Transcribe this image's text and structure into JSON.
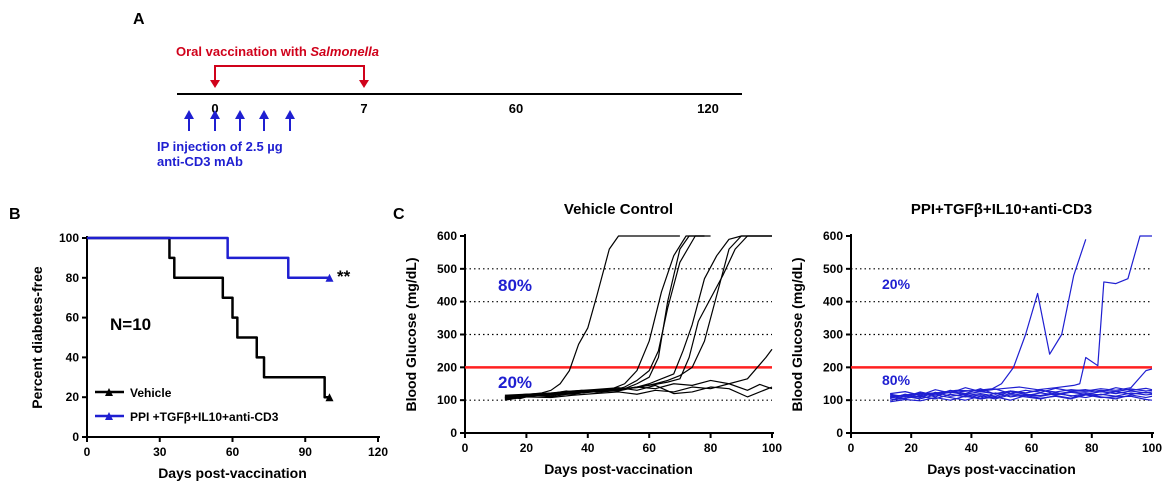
{
  "panel_a": {
    "letter": "A",
    "vaccination_text": "Oral vaccination with ",
    "vaccination_italic": "Salmonella",
    "timeline_ticks": [
      "0",
      "7",
      "60",
      "120"
    ],
    "injection_line1": "IP injection of 2.5 µg",
    "injection_line2": "anti-CD3 mAb",
    "injection_arrow_count": 5,
    "colors": {
      "vaccination": "#d0021b",
      "injection": "#1f1fd1"
    }
  },
  "panel_b": {
    "letter": "B",
    "annotation": "N=10",
    "significance": "**"
  },
  "panel_c": {
    "letter": "C",
    "threshold_color": "#ff2020"
  },
  "chart_data": [
    {
      "id": "survival",
      "type": "line",
      "step": true,
      "title": "",
      "xlabel": "Days post-vaccination",
      "ylabel": "Percent diabetes-free",
      "xlim": [
        0,
        120
      ],
      "ylim": [
        0,
        100
      ],
      "xticks": [
        "0",
        "30",
        "60",
        "90",
        "120"
      ],
      "yticks": [
        "0",
        "20",
        "40",
        "60",
        "80",
        "100"
      ],
      "legend_position": "bottom-left",
      "series": [
        {
          "name": "Vehicle",
          "color": "#000000",
          "x": [
            0,
            34,
            36,
            56,
            60,
            62,
            65,
            70,
            73,
            76,
            98,
            100
          ],
          "y": [
            100,
            90,
            80,
            70,
            60,
            50,
            50,
            40,
            30,
            30,
            20,
            20
          ]
        },
        {
          "name": "PPI +TGFβ+IL10+anti-CD3",
          "color": "#1f1fd1",
          "x": [
            0,
            58,
            83,
            100
          ],
          "y": [
            100,
            90,
            80,
            80
          ]
        }
      ]
    },
    {
      "id": "vehicle_glucose",
      "type": "line",
      "title": "Vehicle Control",
      "xlabel": "Days post-vaccination",
      "ylabel": "Blood Glucose (mg/dL)",
      "xlim": [
        0,
        100
      ],
      "ylim": [
        0,
        600
      ],
      "xticks": [
        "0",
        "20",
        "40",
        "60",
        "80",
        "100"
      ],
      "yticks": [
        "0",
        "100",
        "200",
        "300",
        "400",
        "500",
        "600"
      ],
      "dotted_gridlines": [
        100,
        300,
        400,
        500
      ],
      "threshold": 200,
      "annotations": [
        "80%",
        "20%"
      ],
      "series_color": "#000000",
      "series": [
        {
          "x": [
            13,
            17,
            21,
            25,
            28,
            31,
            34,
            37,
            40,
            43,
            47,
            50,
            60,
            70
          ],
          "y": [
            108,
            112,
            118,
            122,
            130,
            150,
            190,
            270,
            320,
            420,
            560,
            600,
            600,
            600
          ]
        },
        {
          "x": [
            13,
            18,
            23,
            28,
            33,
            38,
            43,
            48,
            52,
            56,
            60,
            64,
            68,
            72,
            78
          ],
          "y": [
            105,
            110,
            115,
            120,
            128,
            122,
            130,
            135,
            150,
            190,
            280,
            430,
            540,
            600,
            600
          ]
        },
        {
          "x": [
            13,
            18,
            23,
            28,
            33,
            38,
            43,
            48,
            52,
            56,
            60,
            63,
            66,
            70,
            73,
            78
          ],
          "y": [
            110,
            105,
            118,
            112,
            125,
            130,
            124,
            128,
            135,
            150,
            170,
            230,
            400,
            560,
            600,
            600
          ]
        },
        {
          "x": [
            13,
            18,
            23,
            28,
            33,
            38,
            43,
            48,
            52,
            56,
            60,
            63,
            66,
            70,
            75,
            80
          ],
          "y": [
            100,
            108,
            115,
            110,
            118,
            122,
            128,
            130,
            140,
            160,
            190,
            250,
            380,
            520,
            600,
            600
          ]
        },
        {
          "x": [
            13,
            20,
            28,
            35,
            42,
            50,
            56,
            60,
            64,
            68,
            71,
            74,
            78,
            82,
            86,
            90,
            100
          ],
          "y": [
            112,
            118,
            120,
            125,
            130,
            128,
            140,
            150,
            165,
            180,
            250,
            330,
            470,
            540,
            590,
            600,
            600
          ]
        },
        {
          "x": [
            13,
            20,
            28,
            35,
            42,
            50,
            56,
            62,
            66,
            70,
            74,
            78,
            82,
            86,
            90,
            100
          ],
          "y": [
            105,
            112,
            118,
            122,
            130,
            135,
            138,
            150,
            160,
            175,
            200,
            280,
            420,
            560,
            600,
            600
          ]
        },
        {
          "x": [
            13,
            20,
            28,
            35,
            42,
            50,
            56,
            62,
            66,
            70,
            73,
            76,
            80,
            84,
            88,
            92,
            100
          ],
          "y": [
            110,
            115,
            120,
            118,
            128,
            132,
            140,
            148,
            155,
            165,
            230,
            340,
            410,
            480,
            560,
            600,
            600
          ]
        },
        {
          "x": [
            13,
            20,
            28,
            35,
            42,
            50,
            56,
            62,
            68,
            74,
            80,
            86,
            92,
            98,
            100
          ],
          "y": [
            108,
            112,
            116,
            120,
            125,
            130,
            140,
            135,
            150,
            145,
            160,
            150,
            165,
            230,
            255
          ]
        },
        {
          "x": [
            13,
            20,
            28,
            35,
            42,
            50,
            56,
            62,
            68,
            74,
            80,
            86,
            92,
            96,
            100
          ],
          "y": [
            102,
            110,
            108,
            115,
            120,
            125,
            118,
            130,
            125,
            140,
            135,
            150,
            130,
            148,
            135
          ]
        },
        {
          "x": [
            13,
            20,
            28,
            35,
            42,
            50,
            56,
            62,
            68,
            74,
            80,
            86,
            92,
            100
          ],
          "y": [
            115,
            118,
            122,
            128,
            132,
            138,
            130,
            145,
            120,
            125,
            140,
            135,
            110,
            140
          ]
        }
      ]
    },
    {
      "id": "ppi_glucose",
      "type": "line",
      "title": "PPI+TGFβ+IL10+anti-CD3",
      "xlabel": "Days post-vaccination",
      "ylabel": "Blood Glucose (mg/dL)",
      "xlim": [
        0,
        100
      ],
      "ylim": [
        0,
        600
      ],
      "xticks": [
        "0",
        "20",
        "40",
        "60",
        "80",
        "100"
      ],
      "yticks": [
        "0",
        "100",
        "200",
        "300",
        "400",
        "500",
        "600"
      ],
      "dotted_gridlines": [
        100,
        300,
        400,
        500
      ],
      "threshold": 200,
      "annotations": [
        "20%",
        "80%"
      ],
      "series_color": "#1f1fd1",
      "series": [
        {
          "x": [
            13,
            20,
            28,
            35,
            42,
            47,
            50,
            54,
            58,
            62,
            66,
            70,
            74,
            78
          ],
          "y": [
            115,
            110,
            120,
            125,
            130,
            135,
            150,
            200,
            300,
            425,
            240,
            300,
            480,
            590
          ]
        },
        {
          "x": [
            13,
            20,
            28,
            35,
            42,
            50,
            56,
            62,
            68,
            74,
            76,
            78,
            82,
            84,
            88,
            92,
            96,
            100
          ],
          "y": [
            110,
            118,
            122,
            130,
            128,
            135,
            140,
            132,
            138,
            145,
            150,
            230,
            205,
            460,
            455,
            470,
            600,
            600
          ]
        },
        {
          "x": [
            13,
            18,
            23,
            28,
            33,
            38,
            43,
            48,
            53,
            58,
            63,
            68,
            73,
            78,
            83,
            88,
            93,
            98,
            100
          ],
          "y": [
            108,
            114,
            120,
            116,
            124,
            118,
            126,
            120,
            128,
            122,
            130,
            125,
            132,
            128,
            135,
            130,
            138,
            190,
            195
          ]
        },
        {
          "x": [
            13,
            18,
            23,
            28,
            33,
            38,
            43,
            48,
            53,
            58,
            63,
            68,
            73,
            78,
            83,
            88,
            93,
            98,
            100
          ],
          "y": [
            100,
            106,
            112,
            104,
            118,
            110,
            116,
            108,
            120,
            114,
            122,
            116,
            124,
            118,
            126,
            120,
            128,
            122,
            125
          ]
        },
        {
          "x": [
            13,
            18,
            23,
            28,
            33,
            38,
            43,
            48,
            53,
            58,
            63,
            68,
            73,
            78,
            83,
            88,
            93,
            98,
            100
          ],
          "y": [
            120,
            126,
            115,
            132,
            122,
            138,
            126,
            134,
            120,
            130,
            124,
            136,
            128,
            132,
            125,
            138,
            130,
            136,
            132
          ]
        },
        {
          "x": [
            13,
            18,
            23,
            28,
            33,
            38,
            43,
            48,
            53,
            58,
            63,
            68,
            73,
            78,
            83,
            88,
            93,
            98,
            100
          ],
          "y": [
            95,
            102,
            98,
            108,
            100,
            112,
            104,
            110,
            100,
            114,
            106,
            112,
            104,
            116,
            108,
            110,
            112,
            102,
            100
          ]
        },
        {
          "x": [
            13,
            18,
            23,
            28,
            33,
            38,
            43,
            48,
            53,
            58,
            63,
            68,
            73,
            78,
            83,
            88,
            93,
            98,
            100
          ],
          "y": [
            112,
            104,
            122,
            110,
            128,
            114,
            120,
            112,
            126,
            118,
            114,
            124,
            112,
            120,
            116,
            126,
            118,
            124,
            120
          ]
        },
        {
          "x": [
            13,
            18,
            23,
            28,
            33,
            38,
            43,
            48,
            53,
            58,
            63,
            68,
            73,
            78,
            83,
            88,
            93,
            98,
            100
          ],
          "y": [
            105,
            118,
            108,
            124,
            112,
            118,
            106,
            122,
            110,
            116,
            112,
            120,
            114,
            108,
            118,
            112,
            122,
            116,
            118
          ]
        },
        {
          "x": [
            13,
            18,
            23,
            28,
            33,
            38,
            43,
            48,
            53,
            58,
            63,
            68,
            73,
            78,
            83,
            88,
            93,
            98,
            100
          ],
          "y": [
            118,
            110,
            125,
            115,
            130,
            120,
            135,
            118,
            128,
            122,
            132,
            118,
            126,
            124,
            130,
            126,
            134,
            128,
            130
          ]
        },
        {
          "x": [
            13,
            18,
            23,
            28,
            33,
            38,
            43,
            48,
            53,
            58,
            63,
            68,
            73,
            78,
            83,
            88,
            93,
            98,
            100
          ],
          "y": [
            100,
            112,
            104,
            116,
            108,
            100,
            112,
            104,
            116,
            110,
            104,
            114,
            106,
            118,
            110,
            104,
            116,
            108,
            112
          ]
        }
      ]
    }
  ]
}
